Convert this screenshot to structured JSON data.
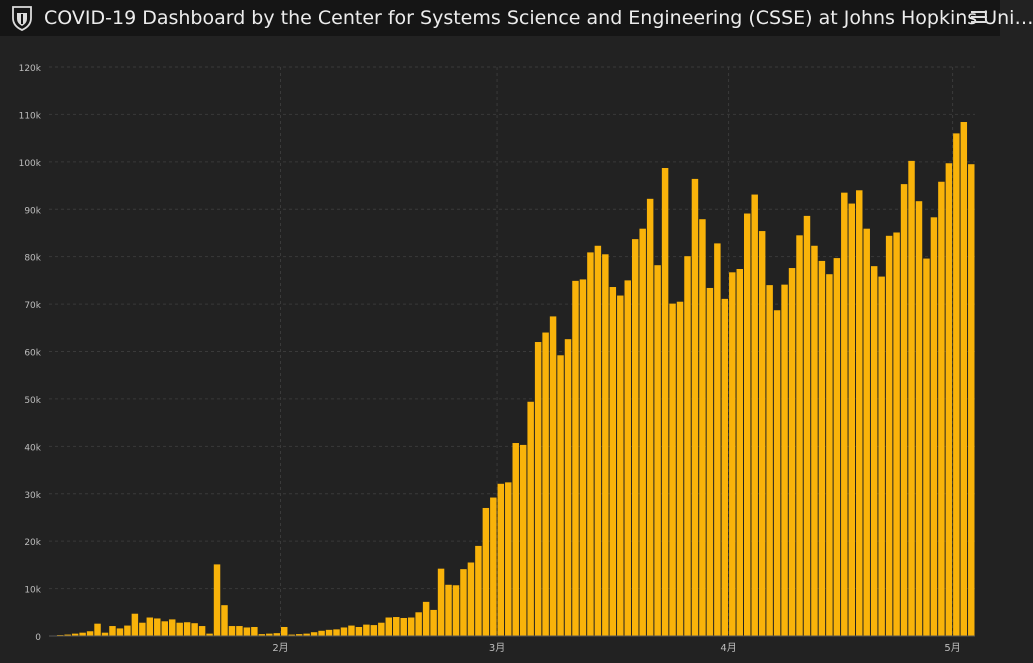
{
  "header": {
    "title": "COVID-19 Dashboard by the Center for Systems Science and Engineering (CSSE) at Johns Hopkins Uni…",
    "logo_icon": "university-shield-icon",
    "menu_icon": "hamburger-menu-icon"
  },
  "colors": {
    "background": "#222222",
    "header": "#151515",
    "bar": "#f9b30a",
    "grid": "#3a3a3a",
    "axis_text": "#bdbdbd"
  },
  "chart_data": {
    "type": "bar",
    "title": "",
    "xlabel": "",
    "ylabel": "",
    "ylim": [
      0,
      120000
    ],
    "y_ticks": [
      "0",
      "10k",
      "20k",
      "30k",
      "40k",
      "50k",
      "60k",
      "70k",
      "80k",
      "90k",
      "100k",
      "110k",
      "120k"
    ],
    "x_tick_labels": [
      {
        "label": "2月",
        "index": 31
      },
      {
        "label": "3月",
        "index": 60
      },
      {
        "label": "4月",
        "index": 91
      },
      {
        "label": "5月",
        "index": 121
      }
    ],
    "grid": true,
    "values": [
      100,
      200,
      300,
      500,
      700,
      1000,
      2600,
      700,
      2100,
      1600,
      2200,
      4700,
      2800,
      3900,
      3700,
      3100,
      3500,
      2800,
      2900,
      2700,
      2100,
      500,
      15100,
      6500,
      2100,
      2100,
      1800,
      1900,
      400,
      500,
      600,
      1900,
      300,
      400,
      500,
      800,
      1100,
      1300,
      1400,
      1800,
      2200,
      1900,
      2400,
      2300,
      2800,
      3900,
      4000,
      3800,
      3900,
      5000,
      7200,
      5500,
      14200,
      10800,
      10700,
      14100,
      15500,
      19000,
      27000,
      29200,
      32100,
      32400,
      40700,
      40300,
      49400,
      62000,
      64000,
      67400,
      59200,
      62600,
      74900,
      75200,
      80900,
      82300,
      80500,
      73600,
      71800,
      75000,
      83700,
      85900,
      92200,
      78200,
      98700,
      70100,
      70500,
      80100,
      96400,
      87900,
      73400,
      82800,
      71100,
      76700,
      77400,
      89100,
      93100,
      85400,
      74000,
      68700,
      74100,
      77600,
      84500,
      88600,
      82300,
      79100,
      76300,
      79700,
      93500,
      91200,
      94000,
      85900,
      78000,
      75800,
      84400,
      85100,
      95300,
      100200,
      91700,
      79600,
      88300,
      95800,
      99700,
      106000,
      108400,
      99500
    ]
  }
}
